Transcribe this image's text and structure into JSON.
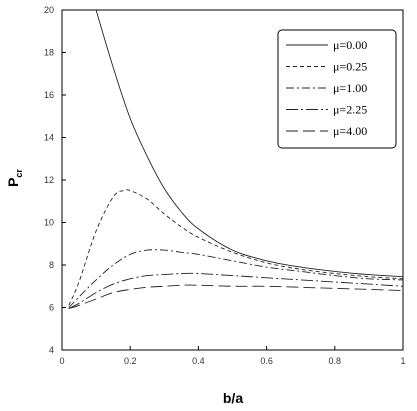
{
  "chart_data": {
    "type": "line",
    "xlabel": "b/a",
    "ylabel_main": "P",
    "ylabel_sub": "cr",
    "xlim": [
      0,
      1
    ],
    "ylim": [
      4,
      20
    ],
    "x_ticks": [
      0,
      0.2,
      0.4,
      0.6,
      0.8,
      1
    ],
    "x_tick_labels": [
      "0",
      "0.2",
      "0.4",
      "0.6",
      "0.8",
      "1"
    ],
    "y_ticks": [
      4,
      6,
      8,
      10,
      12,
      14,
      16,
      18,
      20
    ],
    "y_tick_labels": [
      "4",
      "6",
      "8",
      "10",
      "12",
      "14",
      "16",
      "18",
      "20"
    ],
    "grid": false,
    "legend_position": "top-right",
    "series": [
      {
        "name": "μ=0.00",
        "dash": "solid",
        "x": [
          0.1,
          0.15,
          0.2,
          0.25,
          0.3,
          0.35,
          0.4,
          0.5,
          0.6,
          0.7,
          0.8,
          0.9,
          1.0
        ],
        "y": [
          20.0,
          17.3,
          14.9,
          13.1,
          11.6,
          10.5,
          9.7,
          8.7,
          8.2,
          7.9,
          7.7,
          7.55,
          7.45
        ]
      },
      {
        "name": "μ=0.25",
        "dash": "short-dash",
        "x": [
          0.02,
          0.05,
          0.1,
          0.15,
          0.18,
          0.2,
          0.25,
          0.3,
          0.35,
          0.4,
          0.5,
          0.6,
          0.7,
          0.8,
          0.9,
          1.0
        ],
        "y": [
          6.1,
          7.2,
          9.6,
          11.2,
          11.5,
          11.5,
          11.1,
          10.4,
          9.8,
          9.3,
          8.6,
          8.1,
          7.8,
          7.6,
          7.45,
          7.35
        ]
      },
      {
        "name": "μ=1.00",
        "dash": "dash-dot",
        "x": [
          0.02,
          0.05,
          0.1,
          0.15,
          0.2,
          0.25,
          0.3,
          0.35,
          0.4,
          0.5,
          0.6,
          0.7,
          0.8,
          0.9,
          1.0
        ],
        "y": [
          6.0,
          6.5,
          7.3,
          8.0,
          8.5,
          8.7,
          8.7,
          8.6,
          8.5,
          8.2,
          7.9,
          7.7,
          7.5,
          7.35,
          7.3
        ]
      },
      {
        "name": "μ=2.25",
        "dash": "long-dash-dot",
        "x": [
          0.02,
          0.05,
          0.1,
          0.15,
          0.2,
          0.25,
          0.3,
          0.35,
          0.4,
          0.5,
          0.6,
          0.7,
          0.8,
          0.9,
          1.0
        ],
        "y": [
          5.95,
          6.2,
          6.7,
          7.1,
          7.35,
          7.5,
          7.55,
          7.6,
          7.6,
          7.5,
          7.4,
          7.3,
          7.2,
          7.1,
          7.0
        ]
      },
      {
        "name": "μ=4.00",
        "dash": "long-dash",
        "x": [
          0.02,
          0.05,
          0.1,
          0.15,
          0.2,
          0.25,
          0.3,
          0.35,
          0.4,
          0.5,
          0.6,
          0.7,
          0.8,
          0.9,
          1.0
        ],
        "y": [
          5.95,
          6.1,
          6.4,
          6.7,
          6.85,
          6.95,
          7.0,
          7.05,
          7.05,
          7.0,
          7.0,
          6.95,
          6.9,
          6.85,
          6.8
        ]
      }
    ]
  }
}
